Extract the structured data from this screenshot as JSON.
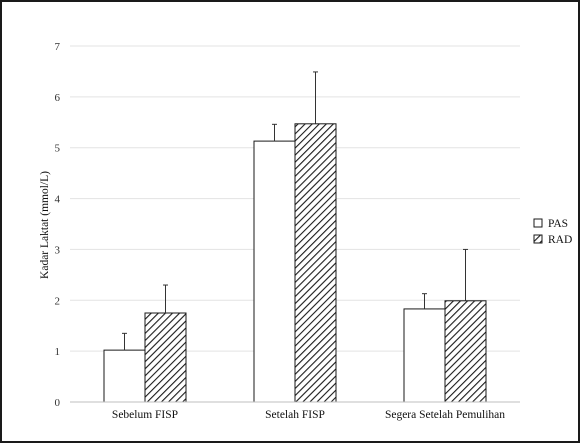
{
  "chart_data": {
    "type": "bar",
    "categories": [
      "Sebelum FISP",
      "Setelah FISP",
      "Segera Setelah Pemulihan"
    ],
    "series": [
      {
        "name": "PAS",
        "values": [
          1.02,
          5.13,
          1.83
        ],
        "errors": [
          0.33,
          0.33,
          0.3
        ],
        "fill": "solid",
        "color": "#ffffff"
      },
      {
        "name": "RAD",
        "values": [
          1.75,
          5.47,
          1.99
        ],
        "errors": [
          0.55,
          1.02,
          1.01
        ],
        "fill": "hatched",
        "color": "#000000"
      }
    ],
    "ylabel": "Kadar Laktat (mmol/L)",
    "xlabel": "",
    "ylim": [
      0,
      7
    ],
    "yticks": [
      0,
      1,
      2,
      3,
      4,
      5,
      6,
      7
    ],
    "grid": true,
    "legend_position": "right",
    "error_bars": "one-sided, upward"
  }
}
